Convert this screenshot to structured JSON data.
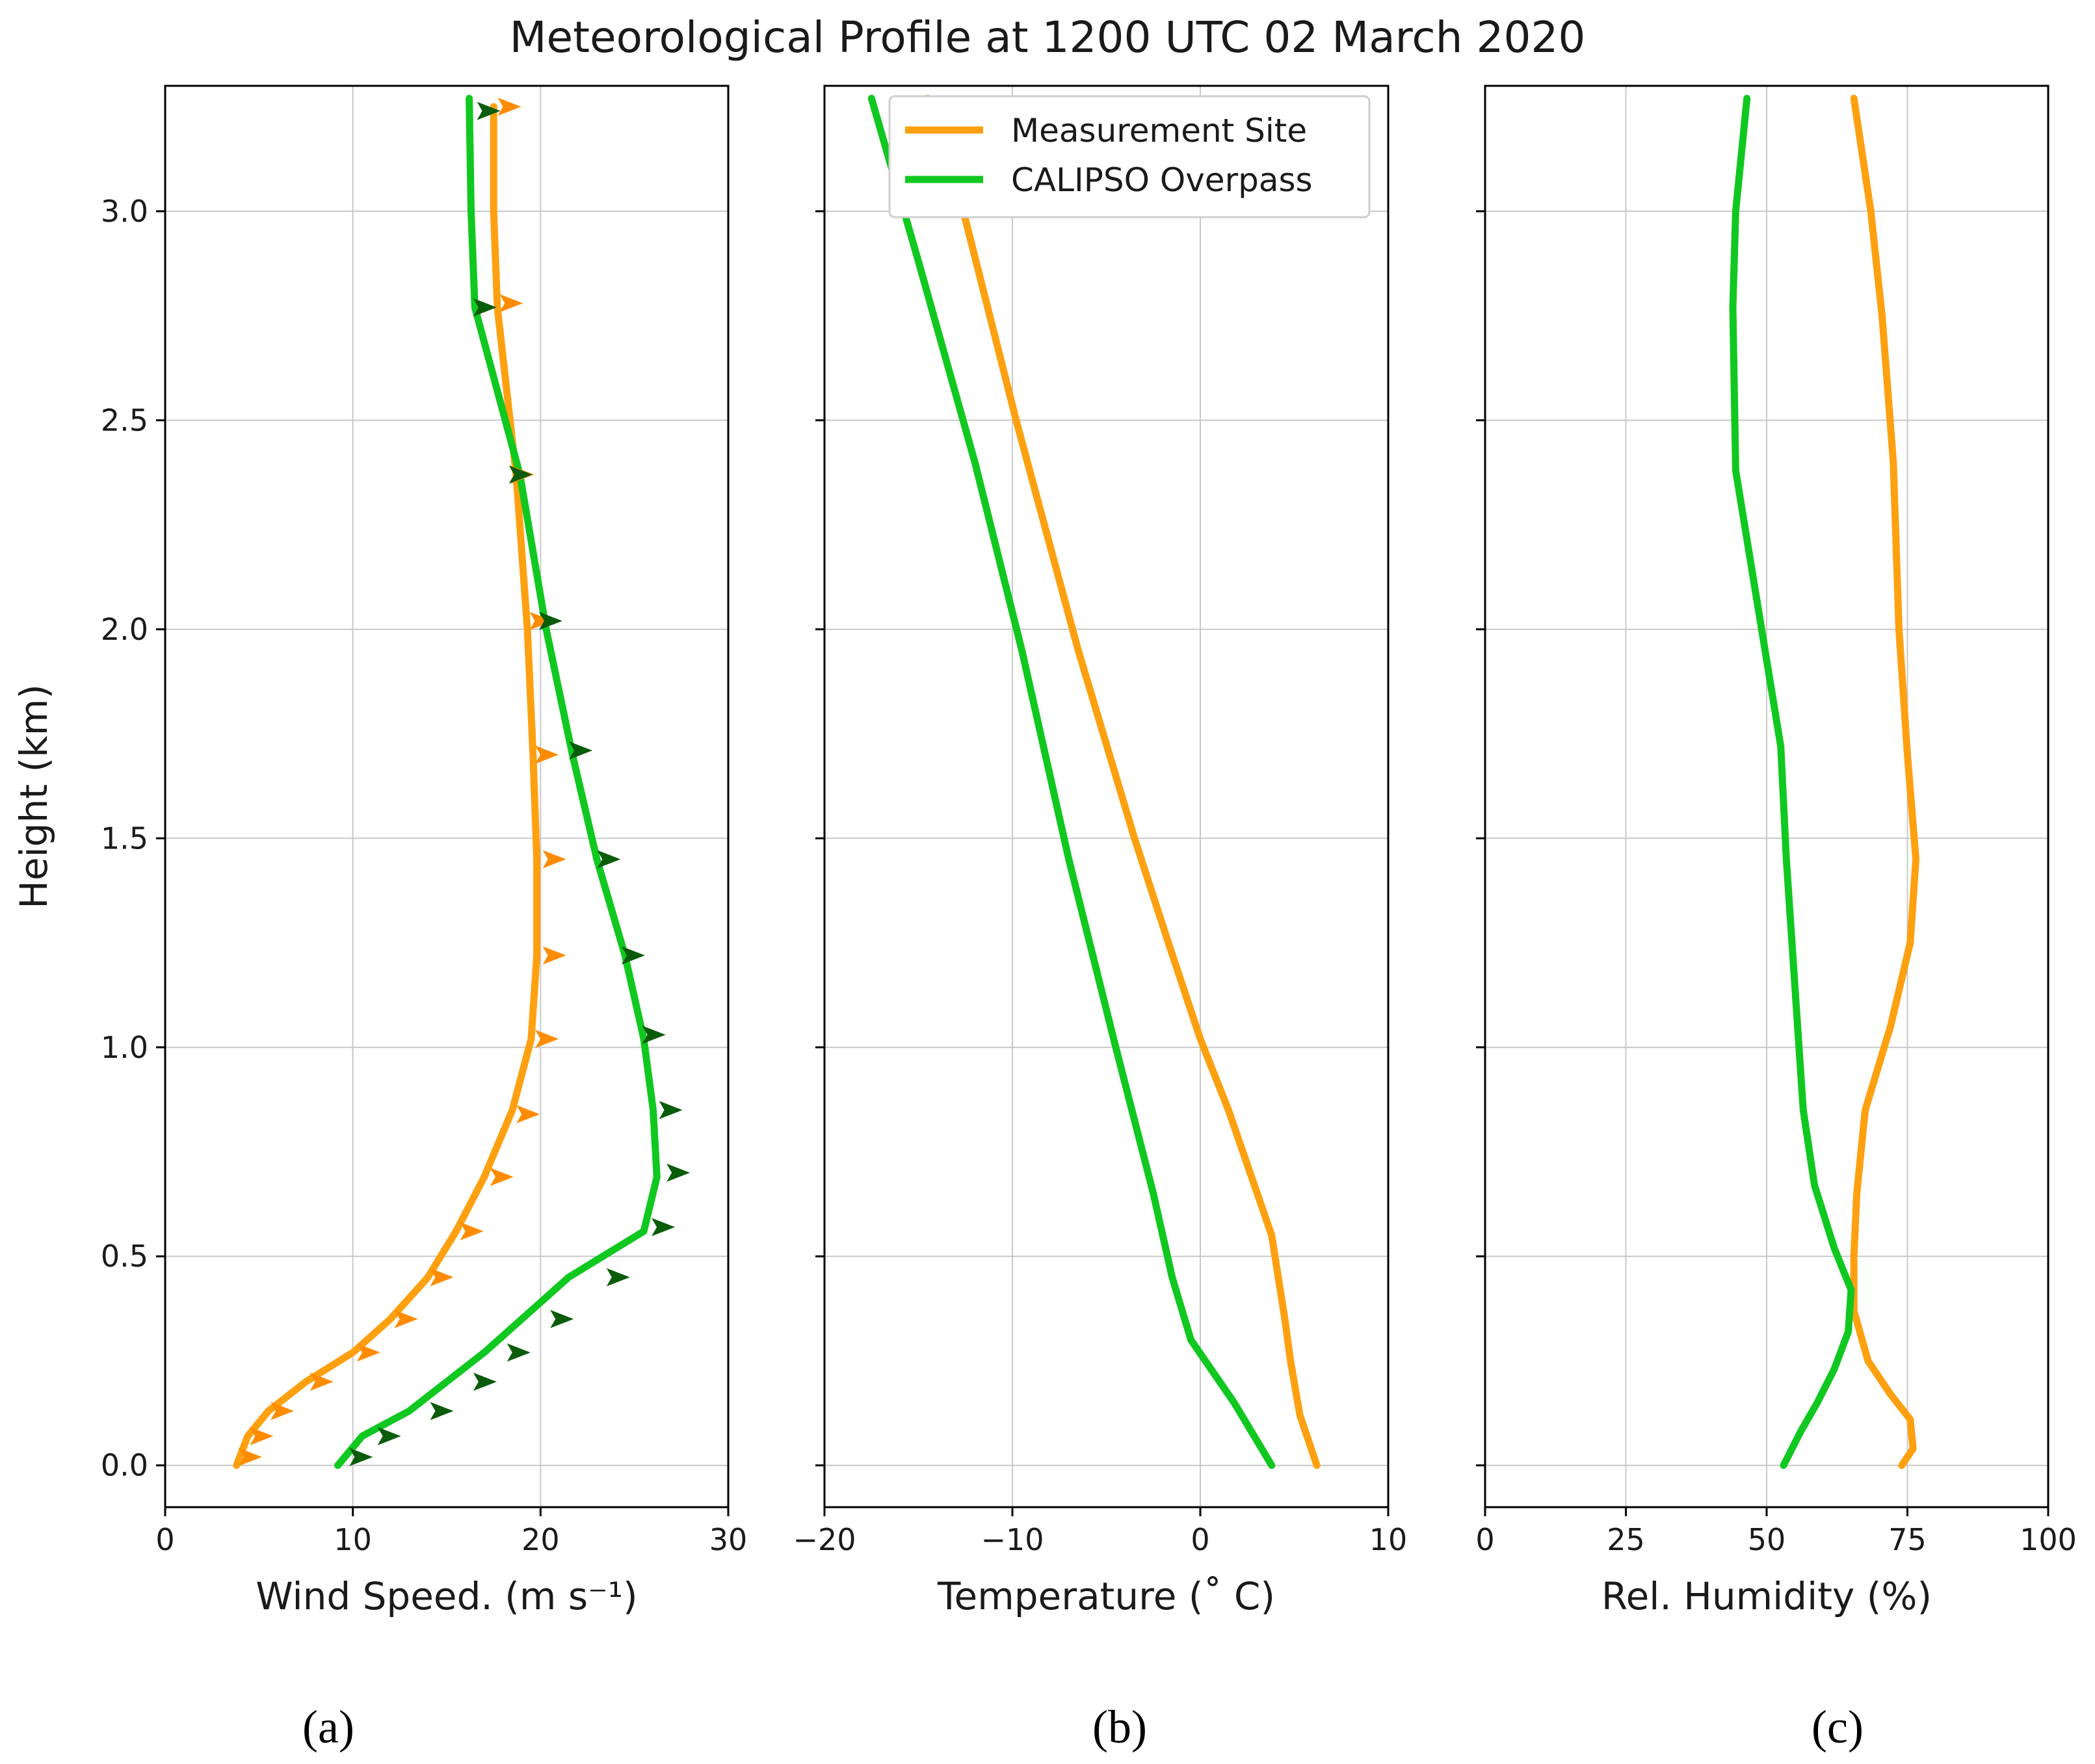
{
  "figure": {
    "title": "Meteorological Profile at 1200 UTC 02 March 2020",
    "colors": {
      "measurement": "#ffa010",
      "calipso": "#10c820",
      "measurement_arrow": "#ff8c00",
      "calipso_arrow": "#0a5c0a"
    },
    "panel_labels": [
      "(a)",
      "(b)",
      "(c)"
    ]
  },
  "legend": {
    "entries": [
      {
        "label": "Measurement Site",
        "color": "#ffa010"
      },
      {
        "label": "CALIPSO Overpass",
        "color": "#10c820"
      }
    ],
    "placement": "top-right of panel (b)"
  },
  "chart_data": [
    {
      "type": "line",
      "panel": "(a)",
      "title": "",
      "xlabel": "Wind Speed. (m s⁻¹)",
      "ylabel": "Height (km)",
      "xlim": [
        0,
        30
      ],
      "ylim": [
        -0.1,
        3.3
      ],
      "xticks": [
        0,
        10,
        20,
        30
      ],
      "xtick_labels": [
        "0",
        "10",
        "20",
        "30"
      ],
      "yticks": [
        0,
        0.5,
        1,
        1.5,
        2,
        2.5,
        3
      ],
      "ytick_labels": [
        "0.0",
        "0.5",
        "1.0",
        "1.5",
        "2.0",
        "2.5",
        "3.0"
      ],
      "grid": true,
      "series": [
        {
          "name": "Measurement Site",
          "color": "#ffa010",
          "points": [
            [
              3.8,
              0
            ],
            [
              4.4,
              0.07
            ],
            [
              5.5,
              0.13
            ],
            [
              7.5,
              0.2
            ],
            [
              10,
              0.27
            ],
            [
              12,
              0.35
            ],
            [
              14,
              0.45
            ],
            [
              15.5,
              0.56
            ],
            [
              17,
              0.69
            ],
            [
              18.5,
              0.85
            ],
            [
              19.5,
              1.02
            ],
            [
              19.8,
              1.22
            ],
            [
              19.8,
              1.45
            ],
            [
              19.6,
              1.7
            ],
            [
              19.3,
              2.0
            ],
            [
              18.7,
              2.37
            ],
            [
              17.7,
              2.77
            ],
            [
              17.5,
              3.0
            ],
            [
              17.5,
              3.25
            ]
          ]
        },
        {
          "name": "CALIPSO Overpass",
          "color": "#10c820",
          "points": [
            [
              9.2,
              0
            ],
            [
              10.5,
              0.07
            ],
            [
              13,
              0.13
            ],
            [
              15,
              0.2
            ],
            [
              17,
              0.27
            ],
            [
              19,
              0.35
            ],
            [
              21.5,
              0.45
            ],
            [
              25.5,
              0.56
            ],
            [
              26.2,
              0.69
            ],
            [
              26,
              0.85
            ],
            [
              25.5,
              1.02
            ],
            [
              24.5,
              1.22
            ],
            [
              23,
              1.45
            ],
            [
              21.7,
              1.7
            ],
            [
              20.3,
              2.0
            ],
            [
              18.9,
              2.37
            ],
            [
              16.5,
              2.77
            ],
            [
              16.3,
              3.0
            ],
            [
              16.2,
              3.27
            ]
          ]
        }
      ],
      "wind_barbs": [
        {
          "series": "Measurement Site",
          "color": "#ff8c00",
          "direction": "east",
          "points": [
            [
              4.4,
              0.02
            ],
            [
              5,
              0.07
            ],
            [
              6.1,
              0.13
            ],
            [
              8.2,
              0.2
            ],
            [
              10.7,
              0.27
            ],
            [
              12.7,
              0.35
            ],
            [
              14.6,
              0.45
            ],
            [
              16.2,
              0.56
            ],
            [
              17.8,
              0.69
            ],
            [
              19.2,
              0.84
            ],
            [
              20.2,
              1.02
            ],
            [
              20.6,
              1.22
            ],
            [
              20.6,
              1.45
            ],
            [
              20.2,
              1.7
            ],
            [
              19.9,
              2.02
            ],
            [
              18.9,
              2.37
            ],
            [
              18.3,
              2.78
            ],
            [
              18.2,
              3.25
            ]
          ]
        },
        {
          "series": "CALIPSO Overpass",
          "color": "#0a5c0a",
          "direction": "east",
          "points": [
            [
              10.3,
              0.02
            ],
            [
              11.8,
              0.07
            ],
            [
              14.6,
              0.13
            ],
            [
              16.9,
              0.2
            ],
            [
              18.7,
              0.27
            ],
            [
              21,
              0.35
            ],
            [
              24,
              0.45
            ],
            [
              26.4,
              0.57
            ],
            [
              27.2,
              0.7
            ],
            [
              26.8,
              0.85
            ],
            [
              25.9,
              1.03
            ],
            [
              24.8,
              1.22
            ],
            [
              23.5,
              1.45
            ],
            [
              22,
              1.71
            ],
            [
              20.4,
              2.02
            ],
            [
              18.8,
              2.37
            ],
            [
              16.9,
              2.77
            ],
            [
              17.1,
              3.24
            ]
          ]
        }
      ]
    },
    {
      "type": "line",
      "panel": "(b)",
      "title": "",
      "xlabel": "Temperature (˚ C)",
      "ylabel": "",
      "xlim": [
        -20,
        10
      ],
      "ylim": [
        -0.1,
        3.3
      ],
      "xticks": [
        -20,
        -10,
        0,
        10
      ],
      "xtick_labels": [
        "−20",
        "−10",
        "0",
        "10"
      ],
      "yticks": [
        0,
        0.5,
        1,
        1.5,
        2,
        2.5,
        3
      ],
      "grid": true,
      "series": [
        {
          "name": "Measurement Site",
          "color": "#ffa010",
          "points": [
            [
              6.2,
              0
            ],
            [
              5.3,
              0.12
            ],
            [
              4.8,
              0.25
            ],
            [
              4.5,
              0.35
            ],
            [
              3.8,
              0.55
            ],
            [
              1.5,
              0.85
            ],
            [
              0,
              1.02
            ],
            [
              -1.7,
              1.25
            ],
            [
              -3.5,
              1.5
            ],
            [
              -6.5,
              1.95
            ],
            [
              -9.8,
              2.5
            ],
            [
              -12.5,
              2.98
            ],
            [
              -14.5,
              3.27
            ]
          ]
        },
        {
          "name": "CALIPSO Overpass",
          "color": "#10c820",
          "points": [
            [
              3.8,
              0
            ],
            [
              1.8,
              0.15
            ],
            [
              -0.5,
              0.3
            ],
            [
              -1.5,
              0.45
            ],
            [
              -2.5,
              0.65
            ],
            [
              -4.5,
              1.0
            ],
            [
              -7,
              1.45
            ],
            [
              -9.5,
              1.95
            ],
            [
              -12,
              2.4
            ],
            [
              -15,
              2.88
            ],
            [
              -17.5,
              3.27
            ]
          ]
        }
      ]
    },
    {
      "type": "line",
      "panel": "(c)",
      "title": "",
      "xlabel": "Rel. Humidity (%)",
      "ylabel": "",
      "xlim": [
        0,
        100
      ],
      "ylim": [
        -0.1,
        3.3
      ],
      "xticks": [
        0,
        25,
        50,
        75,
        100
      ],
      "xtick_labels": [
        "0",
        "25",
        "50",
        "75",
        "100"
      ],
      "yticks": [
        0,
        0.5,
        1,
        1.5,
        2,
        2.5,
        3
      ],
      "grid": true,
      "series": [
        {
          "name": "Measurement Site",
          "color": "#ffa010",
          "points": [
            [
              74,
              0
            ],
            [
              76,
              0.04
            ],
            [
              75.5,
              0.11
            ],
            [
              72,
              0.17
            ],
            [
              68,
              0.25
            ],
            [
              65.5,
              0.37
            ],
            [
              65.5,
              0.5
            ],
            [
              66,
              0.65
            ],
            [
              67.5,
              0.85
            ],
            [
              72,
              1.05
            ],
            [
              75.5,
              1.25
            ],
            [
              76.5,
              1.45
            ],
            [
              75,
              1.7
            ],
            [
              73.5,
              2.0
            ],
            [
              72.5,
              2.4
            ],
            [
              70.5,
              2.75
            ],
            [
              68.5,
              3.0
            ],
            [
              65.5,
              3.27
            ]
          ]
        },
        {
          "name": "CALIPSO Overpass",
          "color": "#10c820",
          "points": [
            [
              53,
              0
            ],
            [
              56,
              0.08
            ],
            [
              59,
              0.15
            ],
            [
              62,
              0.23
            ],
            [
              64.5,
              0.32
            ],
            [
              65,
              0.42
            ],
            [
              62,
              0.52
            ],
            [
              58.5,
              0.67
            ],
            [
              56.5,
              0.85
            ],
            [
              55.5,
              1.05
            ],
            [
              53.5,
              1.45
            ],
            [
              52.5,
              1.72
            ],
            [
              48.5,
              2.05
            ],
            [
              44.5,
              2.38
            ],
            [
              44,
              2.77
            ],
            [
              44.5,
              3.0
            ],
            [
              46.5,
              3.27
            ]
          ]
        }
      ]
    }
  ]
}
